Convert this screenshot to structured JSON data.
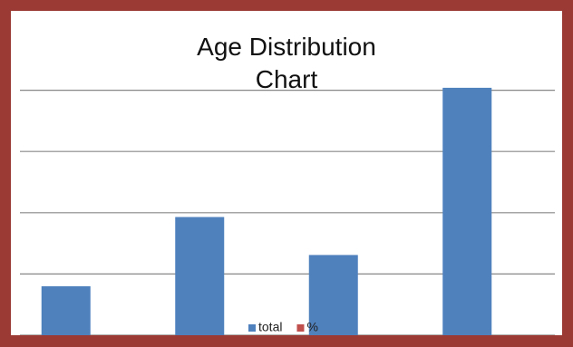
{
  "chart_data": {
    "type": "bar",
    "title": "Age Distribution Chart",
    "categories": [
      null,
      null,
      null,
      null
    ],
    "series": [
      {
        "name": "total",
        "color": "#4f81bd",
        "values": [
          0.8,
          1.93,
          1.31,
          4.04
        ]
      },
      {
        "name": "%",
        "color": "#c0504d",
        "values": [
          null,
          null,
          null,
          null
        ]
      }
    ],
    "ylim": [
      0,
      5
    ],
    "yticks": [
      0,
      1,
      2,
      3,
      4
    ],
    "grid": true,
    "legend": "bottom"
  }
}
